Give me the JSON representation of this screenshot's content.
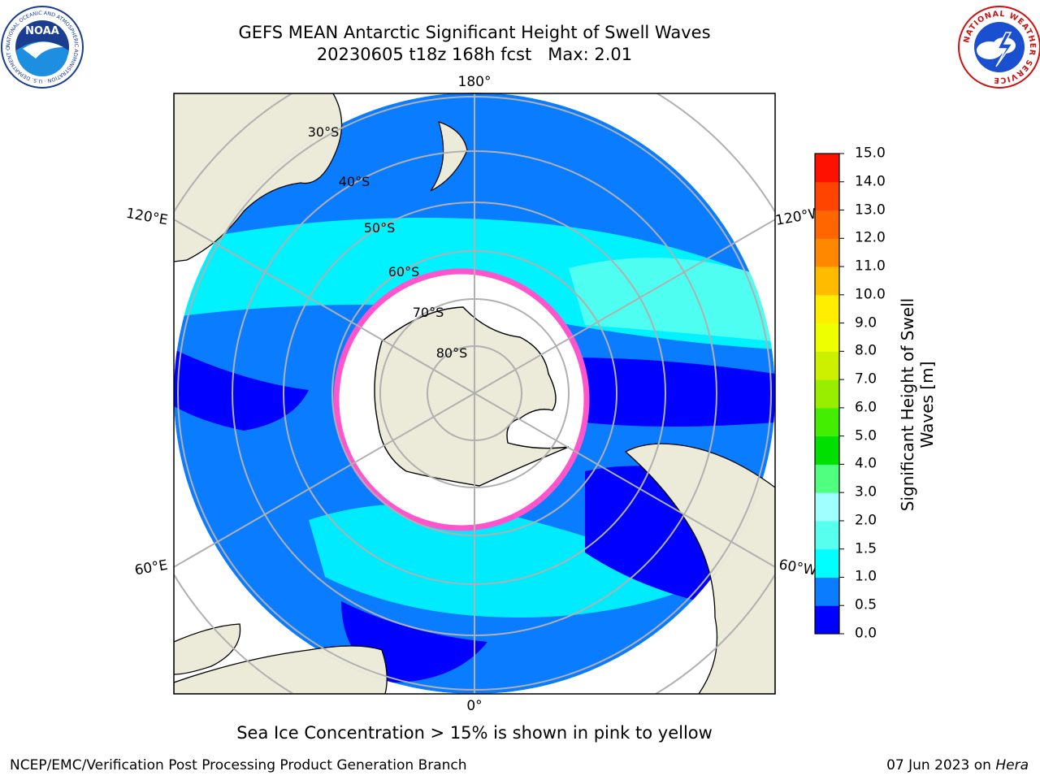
{
  "title": {
    "line1": "GEFS MEAN Antarctic Significant Height of Swell Waves",
    "line2": "20230605 t18z 168h fcst   Max: 2.01"
  },
  "logos": {
    "noaa": {
      "text": "NOAA",
      "ring_text": "NATIONAL OCEANIC AND ATMOSPHERIC ADMINISTRATION · U.S. DEPARTMENT OF COMMERCE"
    },
    "nws": {
      "ring_text": "NATIONAL WEATHER SERVICE"
    }
  },
  "map": {
    "projection": "south polar stereographic",
    "longitude_labels": {
      "top": "180°",
      "bottom": "0°",
      "upper_left": "120°E",
      "upper_right": "120°W",
      "lower_left": "60°E",
      "lower_right": "60°W"
    },
    "latitude_labels": [
      "30°S",
      "40°S",
      "50°S",
      "60°S",
      "70°S",
      "80°S"
    ],
    "colors": {
      "land": "#ecebd9",
      "ice": "#ffffff",
      "ice_edge": "#ff55cc",
      "grid": "#b0b0b0"
    }
  },
  "colorbar": {
    "label": "Significant Height of Swell Waves [m]",
    "label_line1": "Significant Height of Swell",
    "label_line2": "Waves [m]",
    "ticks": [
      "0.0",
      "0.5",
      "1.0",
      "1.5",
      "2.0",
      "3.0",
      "4.0",
      "5.0",
      "6.0",
      "7.0",
      "8.0",
      "9.0",
      "10.0",
      "11.0",
      "12.0",
      "13.0",
      "14.0",
      "15.0"
    ],
    "colors": [
      "#0000ff",
      "#0a7cff",
      "#00ffff",
      "#56ffee",
      "#a0ffff",
      "#50ff80",
      "#00e000",
      "#44ee00",
      "#99ee00",
      "#ccf000",
      "#eeff00",
      "#ffee00",
      "#ffbb00",
      "#ff8800",
      "#ff6600",
      "#ff4400",
      "#ff1100"
    ]
  },
  "caption": "Sea Ice Concentration > 15% is shown in pink to yellow",
  "footer": {
    "left": "NCEP/EMC/Verification Post Processing Product Generation Branch",
    "right_date": "07 Jun 2023 on ",
    "right_host": "Hera"
  }
}
